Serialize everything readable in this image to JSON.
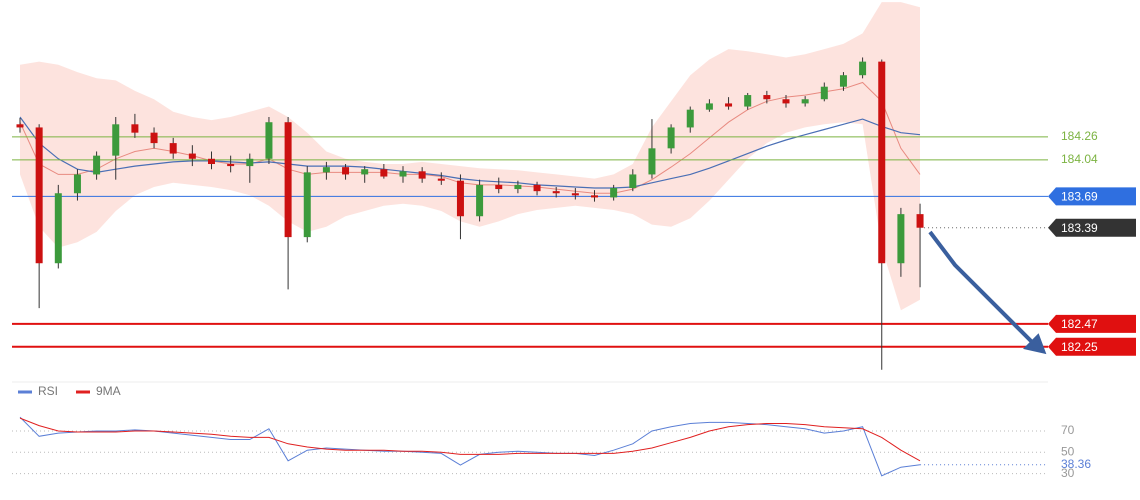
{
  "chart_data": [
    {
      "type": "candlestick",
      "open": [
        184.38,
        184.35,
        183.05,
        183.72,
        183.9,
        184.08,
        184.38,
        184.3,
        184.2,
        184.1,
        184.05,
        184.0,
        183.98,
        184.05,
        184.4,
        183.3,
        183.92,
        183.97,
        183.9,
        183.95,
        183.88,
        183.93,
        183.86,
        183.84,
        183.5,
        183.8,
        183.76,
        183.8,
        183.74,
        183.72,
        183.7,
        183.68,
        183.77,
        183.9,
        184.15,
        184.35,
        184.52,
        184.58,
        184.55,
        184.66,
        184.62,
        184.58,
        184.62,
        184.74,
        184.85,
        184.98,
        183.05,
        183.52
      ],
      "high": [
        184.44,
        184.38,
        183.8,
        183.95,
        184.12,
        184.45,
        184.48,
        184.35,
        184.25,
        184.18,
        184.12,
        184.08,
        184.1,
        184.45,
        184.45,
        183.98,
        184.02,
        184.0,
        183.98,
        184.0,
        183.98,
        183.97,
        183.92,
        183.9,
        183.85,
        183.87,
        183.84,
        183.83,
        183.78,
        183.77,
        183.75,
        183.8,
        183.95,
        184.43,
        184.38,
        184.55,
        184.62,
        184.64,
        184.68,
        184.7,
        184.66,
        184.65,
        184.78,
        184.88,
        185.02,
        185.0,
        183.58,
        183.62
      ],
      "low": [
        184.3,
        182.62,
        183.0,
        183.65,
        183.85,
        183.85,
        184.25,
        184.15,
        184.05,
        183.98,
        183.95,
        183.92,
        183.82,
        184.0,
        182.8,
        183.25,
        183.85,
        183.85,
        183.82,
        183.86,
        183.82,
        183.82,
        183.8,
        183.28,
        183.45,
        183.72,
        183.72,
        183.7,
        183.68,
        183.66,
        183.64,
        183.65,
        183.74,
        183.86,
        184.1,
        184.3,
        184.5,
        184.52,
        184.52,
        184.58,
        184.54,
        184.55,
        184.6,
        184.7,
        184.82,
        182.03,
        182.92,
        182.82
      ],
      "close": [
        184.35,
        183.05,
        183.72,
        183.9,
        184.08,
        184.38,
        184.3,
        184.2,
        184.1,
        184.05,
        184.0,
        183.98,
        184.05,
        184.4,
        183.3,
        183.92,
        183.97,
        183.9,
        183.95,
        183.88,
        183.93,
        183.86,
        183.84,
        183.5,
        183.8,
        183.76,
        183.8,
        183.74,
        183.72,
        183.7,
        183.68,
        183.77,
        183.9,
        184.15,
        184.35,
        184.52,
        184.58,
        184.55,
        184.66,
        184.62,
        184.58,
        184.62,
        184.74,
        184.85,
        184.98,
        183.05,
        183.52,
        183.39
      ],
      "upper": [
        184.95,
        184.98,
        184.95,
        184.88,
        184.82,
        184.8,
        184.7,
        184.62,
        184.5,
        184.45,
        184.42,
        184.45,
        184.5,
        184.55,
        184.45,
        184.3,
        184.12,
        184.05,
        184.02,
        184.0,
        184.0,
        184.02,
        184.0,
        183.98,
        183.96,
        183.95,
        183.94,
        183.92,
        183.9,
        183.88,
        183.86,
        183.9,
        184.0,
        184.35,
        184.6,
        184.85,
        185.0,
        185.1,
        185.08,
        185.05,
        185.02,
        185.05,
        185.1,
        185.15,
        185.25,
        185.55,
        185.55,
        185.5
      ],
      "lower": [
        183.9,
        183.4,
        183.2,
        183.25,
        183.35,
        183.55,
        183.7,
        183.78,
        183.82,
        183.8,
        183.78,
        183.75,
        183.7,
        183.6,
        183.45,
        183.35,
        183.4,
        183.5,
        183.55,
        183.6,
        183.62,
        183.6,
        183.55,
        183.45,
        183.4,
        183.45,
        183.52,
        183.56,
        183.58,
        183.6,
        183.58,
        183.56,
        183.52,
        183.42,
        183.4,
        183.48,
        183.65,
        183.85,
        184.05,
        184.2,
        184.3,
        184.35,
        184.38,
        184.4,
        184.38,
        183.2,
        182.6,
        182.7
      ],
      "ma_fast": [
        184.4,
        184.0,
        183.9,
        183.9,
        183.95,
        184.05,
        184.12,
        184.15,
        184.12,
        184.08,
        184.03,
        184.0,
        184.0,
        184.05,
        183.95,
        183.9,
        183.92,
        183.92,
        183.92,
        183.92,
        183.9,
        183.9,
        183.88,
        183.82,
        183.8,
        183.8,
        183.79,
        183.78,
        183.76,
        183.74,
        183.72,
        183.72,
        183.76,
        183.85,
        183.97,
        184.1,
        184.25,
        184.4,
        184.52,
        184.6,
        184.64,
        184.66,
        184.69,
        184.72,
        184.78,
        184.6,
        184.15,
        183.9
      ],
      "ma_slow": [
        184.45,
        184.2,
        184.05,
        183.95,
        183.92,
        183.95,
        183.98,
        184.0,
        184.02,
        184.03,
        184.03,
        184.02,
        184.01,
        184.02,
        184.0,
        183.98,
        183.98,
        183.98,
        183.97,
        183.95,
        183.93,
        183.91,
        183.89,
        183.86,
        183.84,
        183.83,
        183.82,
        183.8,
        183.79,
        183.78,
        183.77,
        183.77,
        183.78,
        183.82,
        183.86,
        183.9,
        183.96,
        184.03,
        184.1,
        184.17,
        184.23,
        184.28,
        184.33,
        184.38,
        184.43,
        184.36,
        184.3,
        184.28
      ],
      "up_color": "#3c9a3c",
      "down_color": "#cc1111",
      "band_color": "#fcd9d3",
      "ma_fast_color": "#e88a80",
      "ma_slow_color": "#4a6fb5",
      "last_color": "#333333",
      "ylim": [
        181.98,
        185.57
      ],
      "levels": [
        {
          "value": 184.26,
          "color": "#7cb342",
          "style": "text"
        },
        {
          "value": 184.04,
          "color": "#7cb342",
          "style": "text"
        },
        {
          "value": 183.69,
          "color": "#2f6fe0",
          "style": "box"
        },
        {
          "value": 182.47,
          "color": "#e01010",
          "style": "box"
        },
        {
          "value": 182.25,
          "color": "#e01010",
          "style": "box"
        }
      ]
    },
    {
      "type": "line",
      "series": [
        {
          "name": "RSI",
          "color": "#5b7fd6",
          "values": [
            83,
            65,
            68,
            69,
            70,
            70,
            71,
            70,
            68,
            66,
            64,
            62,
            62,
            72,
            42,
            52,
            54,
            53,
            52,
            51,
            51,
            50,
            49,
            38,
            48,
            50,
            51,
            50,
            49,
            49,
            47,
            52,
            58,
            70,
            74,
            77,
            78,
            78,
            77,
            76,
            74,
            72,
            68,
            70,
            74,
            28,
            36,
            38.36
          ]
        },
        {
          "name": "9MA",
          "color": "#e02020",
          "values": [
            82,
            75,
            70,
            69,
            69,
            69,
            70,
            70,
            69,
            68,
            67,
            65,
            64,
            64,
            58,
            55,
            53,
            52,
            52,
            52,
            51,
            51,
            50,
            48,
            48,
            48,
            49,
            49,
            49,
            49,
            49,
            49,
            51,
            54,
            59,
            64,
            70,
            74,
            76,
            77,
            77,
            76,
            74,
            73,
            72,
            64,
            52,
            42
          ]
        }
      ],
      "ylim": [
        10,
        99
      ],
      "yticks": [
        70,
        50,
        30
      ]
    }
  ]
}
